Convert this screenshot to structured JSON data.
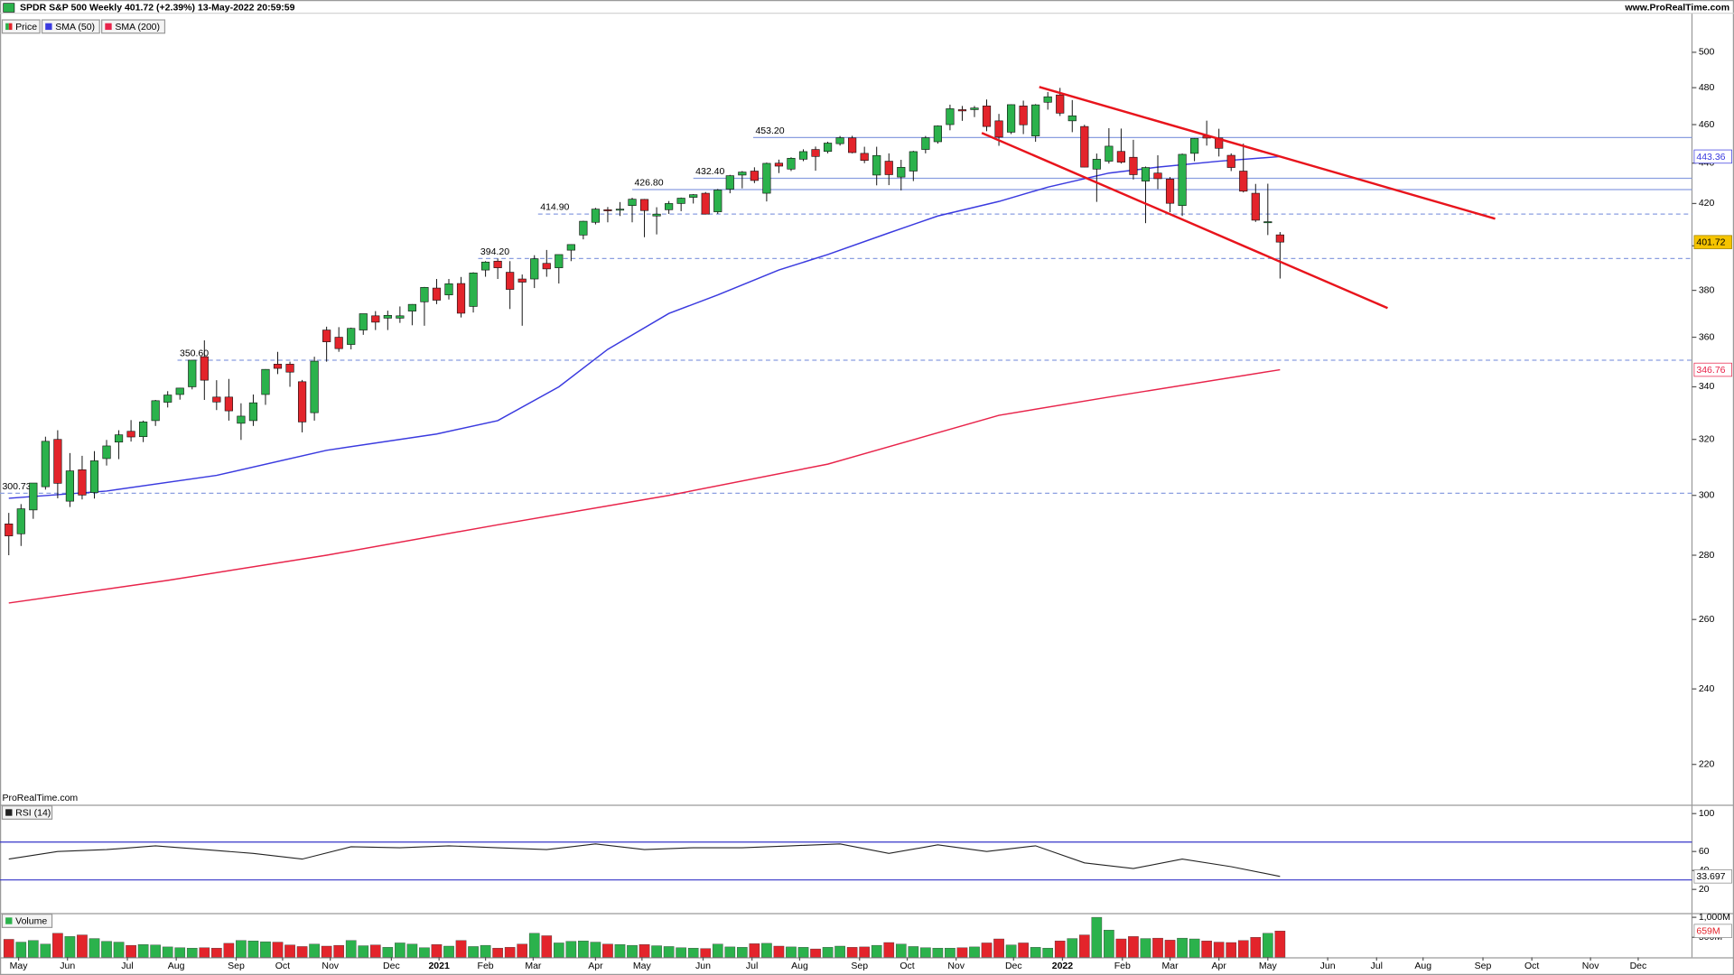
{
  "header": {
    "title": "SPDR S&P 500 Weekly 401.72 (+2.39%) 13-May-2022 20:59:59",
    "site": "www.ProRealTime.com"
  },
  "chart_data": [
    {
      "type": "candlestick",
      "name": "Price",
      "up_color": "#2bb24c",
      "down_color": "#e3242b",
      "log_scale": true,
      "watermark": "ProRealTime.com",
      "xlim": [
        -0.72,
        137.7
      ],
      "xticks": [
        {
          "value": 0.8,
          "label": "May"
        },
        {
          "value": 4.8,
          "label": "Jun"
        },
        {
          "value": 9.7,
          "label": "Jul"
        },
        {
          "value": 13.7,
          "label": "Aug"
        },
        {
          "value": 18.6,
          "label": "Sep"
        },
        {
          "value": 22.4,
          "label": "Oct"
        },
        {
          "value": 26.3,
          "label": "Nov"
        },
        {
          "value": 31.3,
          "label": "Dec"
        },
        {
          "value": 35.2,
          "label": "2021"
        },
        {
          "value": 39.0,
          "label": "Feb"
        },
        {
          "value": 42.9,
          "label": "Mar"
        },
        {
          "value": 48.0,
          "label": "Apr"
        },
        {
          "value": 51.8,
          "label": "May"
        },
        {
          "value": 56.8,
          "label": "Jun"
        },
        {
          "value": 60.8,
          "label": "Jul"
        },
        {
          "value": 64.7,
          "label": "Aug"
        },
        {
          "value": 69.6,
          "label": "Sep"
        },
        {
          "value": 73.5,
          "label": "Oct"
        },
        {
          "value": 77.5,
          "label": "Nov"
        },
        {
          "value": 82.2,
          "label": "Dec"
        },
        {
          "value": 86.2,
          "label": "2022"
        },
        {
          "value": 91.1,
          "label": "Feb"
        },
        {
          "value": 95.0,
          "label": "Mar"
        },
        {
          "value": 99.0,
          "label": "Apr"
        },
        {
          "value": 103.0,
          "label": "May"
        },
        {
          "value": 107.9,
          "label": "Jun"
        },
        {
          "value": 111.9,
          "label": "Jul"
        },
        {
          "value": 115.7,
          "label": "Aug"
        },
        {
          "value": 120.6,
          "label": "Sep"
        },
        {
          "value": 124.6,
          "label": "Oct"
        },
        {
          "value": 129.4,
          "label": "Nov"
        },
        {
          "value": 133.3,
          "label": "Dec"
        }
      ],
      "ylim": [
        210,
        523
      ],
      "yticks": [
        220,
        240,
        260,
        280,
        300,
        320,
        340,
        360,
        380,
        400,
        420,
        440,
        460,
        480,
        500
      ],
      "ohlc": [
        [
          290.3,
          294.0,
          280.0,
          286.3
        ],
        [
          287.0,
          297.0,
          283.0,
          295.4
        ],
        [
          295.0,
          304.0,
          292.0,
          304.3
        ],
        [
          303.0,
          321.0,
          302.0,
          319.3
        ],
        [
          320.0,
          323.4,
          299.0,
          304.2
        ],
        [
          298.0,
          315.0,
          296.0,
          308.6
        ],
        [
          309.0,
          314.0,
          298.6,
          300.1
        ],
        [
          301.0,
          315.7,
          298.9,
          312.2
        ],
        [
          313.0,
          319.8,
          310.5,
          317.6
        ],
        [
          319.0,
          323.4,
          312.8,
          321.7
        ],
        [
          323.0,
          327.2,
          319.2,
          320.9
        ],
        [
          321.0,
          327.0,
          319.0,
          326.5
        ],
        [
          327.0,
          334.9,
          325.0,
          334.6
        ],
        [
          334.0,
          338.3,
          332.0,
          336.8
        ],
        [
          337.0,
          339.6,
          335.0,
          339.5
        ],
        [
          340.0,
          350.7,
          339.0,
          350.6
        ],
        [
          352.0,
          358.7,
          334.9,
          342.6
        ],
        [
          336.0,
          342.6,
          331.0,
          334.1
        ],
        [
          336.0,
          343.1,
          327.0,
          330.7
        ],
        [
          326.0,
          333.6,
          319.8,
          328.7
        ],
        [
          327.0,
          337.0,
          325.0,
          333.8
        ],
        [
          337.0,
          347.0,
          333.0,
          346.9
        ],
        [
          349.0,
          354.0,
          345.0,
          347.3
        ],
        [
          349.0,
          350.0,
          340.0,
          345.8
        ],
        [
          342.0,
          342.7,
          322.6,
          326.5
        ],
        [
          330.0,
          352.0,
          327.0,
          350.2
        ],
        [
          363.0,
          364.4,
          350.0,
          358.1
        ],
        [
          360.0,
          364.2,
          354.0,
          355.3
        ],
        [
          357.0,
          364.0,
          355.0,
          363.7
        ],
        [
          363.0,
          369.9,
          361.0,
          369.9
        ],
        [
          369.0,
          371.0,
          363.0,
          366.3
        ],
        [
          368.0,
          371.2,
          363.0,
          369.2
        ],
        [
          368.0,
          373.0,
          366.0,
          369.0
        ],
        [
          371.0,
          374.0,
          365.0,
          373.9
        ],
        [
          375.0,
          381.5,
          364.8,
          381.3
        ],
        [
          381.0,
          385.0,
          374.0,
          375.7
        ],
        [
          378.0,
          385.0,
          376.0,
          382.9
        ],
        [
          383.0,
          385.9,
          368.3,
          370.1
        ],
        [
          373.0,
          388.0,
          370.4,
          387.7
        ],
        [
          389.0,
          393.0,
          386.0,
          392.6
        ],
        [
          393.0,
          394.2,
          385.0,
          390.0
        ],
        [
          388.0,
          393.0,
          371.9,
          380.4
        ],
        [
          385.0,
          387.0,
          364.8,
          383.6
        ],
        [
          385.0,
          395.7,
          381.0,
          394.1
        ],
        [
          392.0,
          398.1,
          386.0,
          389.5
        ],
        [
          390.0,
          396.0,
          383.0,
          396.0
        ],
        [
          398.0,
          400.7,
          393.0,
          400.6
        ],
        [
          405.0,
          411.7,
          403.0,
          411.5
        ],
        [
          411.0,
          417.9,
          410.0,
          417.3
        ],
        [
          417.0,
          418.3,
          411.0,
          416.7
        ],
        [
          417.0,
          420.7,
          414.0,
          417.3
        ],
        [
          419.0,
          422.8,
          411.0,
          422.1
        ],
        [
          422.0,
          422.2,
          404.0,
          416.6
        ],
        [
          414.0,
          418.2,
          405.3,
          414.9
        ],
        [
          417.0,
          421.2,
          415.0,
          420.0
        ],
        [
          420.0,
          422.9,
          416.3,
          422.6
        ],
        [
          423.0,
          424.6,
          420.0,
          424.3
        ],
        [
          425.0,
          425.6,
          414.7,
          414.9
        ],
        [
          416.0,
          427.1,
          415.0,
          426.6
        ],
        [
          427.0,
          434.1,
          425.0,
          433.7
        ],
        [
          434.0,
          436.0,
          427.4,
          435.5
        ],
        [
          436.0,
          437.9,
          430.0,
          431.3
        ],
        [
          425.0,
          440.3,
          421.0,
          439.9
        ],
        [
          440.0,
          441.8,
          435.0,
          438.5
        ],
        [
          437.0,
          443.0,
          436.0,
          442.5
        ],
        [
          442.0,
          447.1,
          441.0,
          445.9
        ],
        [
          447.0,
          448.5,
          436.2,
          443.4
        ],
        [
          446.0,
          451.0,
          445.0,
          450.3
        ],
        [
          450.0,
          454.0,
          449.0,
          453.1
        ],
        [
          453.0,
          454.1,
          445.0,
          445.4
        ],
        [
          445.0,
          448.4,
          440.0,
          441.4
        ],
        [
          434.0,
          448.4,
          428.9,
          443.9
        ],
        [
          441.0,
          445.0,
          429.0,
          434.2
        ],
        [
          433.0,
          441.7,
          426.4,
          437.9
        ],
        [
          436.0,
          446.3,
          431.0,
          445.9
        ],
        [
          447.0,
          454.0,
          445.0,
          453.1
        ],
        [
          451.0,
          459.6,
          450.0,
          459.3
        ],
        [
          460.0,
          470.7,
          457.0,
          468.5
        ],
        [
          468.0,
          470.0,
          462.0,
          467.3
        ],
        [
          468.0,
          470.0,
          464.0,
          468.9
        ],
        [
          470.0,
          473.5,
          456.5,
          459.0
        ],
        [
          462.0,
          465.7,
          448.9,
          453.4
        ],
        [
          456.0,
          470.9,
          455.0,
          470.7
        ],
        [
          470.0,
          472.9,
          455.0,
          459.9
        ],
        [
          454.0,
          471.0,
          451.0,
          470.6
        ],
        [
          472.0,
          477.6,
          468.0,
          475.0
        ],
        [
          476.0,
          479.9,
          464.6,
          466.1
        ],
        [
          462.0,
          473.2,
          456.0,
          464.7
        ],
        [
          459.0,
          459.9,
          437.9,
          438.0
        ],
        [
          437.0,
          444.9,
          420.8,
          442.0
        ],
        [
          441.0,
          458.1,
          439.8,
          448.7
        ],
        [
          446.0,
          457.9,
          439.8,
          440.5
        ],
        [
          443.0,
          452.0,
          431.8,
          434.2
        ],
        [
          431.0,
          438.3,
          410.6,
          437.8
        ],
        [
          435.0,
          444.0,
          427.0,
          432.2
        ],
        [
          432.0,
          433.0,
          415.8,
          420.1
        ],
        [
          419.0,
          444.9,
          414.0,
          444.5
        ],
        [
          445.0,
          452.9,
          441.0,
          452.7
        ],
        [
          454.0,
          462.1,
          449.0,
          452.9
        ],
        [
          453.0,
          457.8,
          443.4,
          447.6
        ],
        [
          444.0,
          445.0,
          436.0,
          437.8
        ],
        [
          436.0,
          450.0,
          425.4,
          426.0
        ],
        [
          425.0,
          429.6,
          411.2,
          412.0
        ],
        [
          411.0,
          429.7,
          405.0,
          411.3
        ],
        [
          405.1,
          406.4,
          385.2,
          401.72
        ]
      ],
      "series": [
        {
          "name": "SMA (50)",
          "color": "#3a3adf",
          "x": [
            0,
            8,
            17,
            26,
            35,
            40,
            45,
            49,
            54,
            58,
            63,
            67,
            72,
            76,
            81,
            85,
            90,
            94,
            99,
            104
          ],
          "values": [
            299,
            301.5,
            307,
            316,
            322,
            327,
            340,
            355,
            370,
            378,
            389,
            396,
            406,
            414,
            421,
            428,
            435,
            438,
            441,
            443.36
          ]
        },
        {
          "name": "SMA (200)",
          "color": "#e8234a",
          "x": [
            0,
            13,
            26,
            40,
            54,
            67,
            81,
            90,
            104
          ],
          "values": [
            265,
            272,
            280,
            290,
            300,
            311,
            329,
            336,
            346.76
          ]
        }
      ],
      "levels": [
        {
          "value": 300.73,
          "x": -0.72,
          "dashed": true
        },
        {
          "value": 350.6,
          "label": "350.60",
          "x": 13.8,
          "dashed": true
        },
        {
          "value": 394.2,
          "label": "394.20",
          "x": 38.4,
          "dashed": true
        },
        {
          "value": 414.9,
          "label": "414.90",
          "x": 43.3,
          "dashed": true
        },
        {
          "value": 426.8,
          "label": "426.80",
          "x": 51.0,
          "dashed": false
        },
        {
          "value": 432.4,
          "label": "432.40",
          "x": 56.0,
          "dashed": false
        },
        {
          "value": 453.2,
          "label": "453.20",
          "x": 60.9,
          "dashed": false
        }
      ],
      "level_color": "#8a9ee0",
      "trendlines": [
        {
          "color": "#e8141c",
          "x": [
            84.3,
            121.6
          ],
          "values": [
            480.4,
            412.7
          ]
        },
        {
          "color": "#e8141c",
          "x": [
            79.6,
            112.8
          ],
          "values": [
            455.6,
            372.3
          ]
        }
      ]
    },
    {
      "type": "line",
      "name": "RSI (14)",
      "color": "#222222",
      "x": [
        0,
        4,
        8,
        12,
        16,
        20,
        24,
        28,
        32,
        36,
        40,
        44,
        48,
        52,
        56,
        60,
        64,
        68,
        72,
        76,
        80,
        84,
        88,
        92,
        96,
        100,
        104
      ],
      "values": [
        52,
        60,
        62,
        66,
        62,
        58,
        52,
        65,
        64,
        66,
        64,
        62,
        68,
        62,
        64,
        64,
        66,
        68,
        58,
        67,
        60,
        66,
        48,
        42,
        52,
        44,
        33.697
      ],
      "ylim": [
        -5,
        107
      ],
      "yticks": [
        20,
        40,
        60,
        100
      ],
      "levels": [
        70,
        30
      ],
      "level_color": "#3535c8"
    },
    {
      "type": "bar",
      "name": "Volume",
      "ylim": [
        0,
        1050
      ],
      "yticks": [
        {
          "value": 500,
          "label": "500M"
        },
        {
          "value": 1000,
          "label": "1,000M"
        }
      ],
      "values": [
        450,
        380,
        420,
        330,
        600,
        520,
        560,
        470,
        400,
        380,
        300,
        320,
        310,
        260,
        240,
        230,
        240,
        230,
        350,
        420,
        410,
        390,
        380,
        310,
        270,
        330,
        280,
        300,
        420,
        290,
        310,
        250,
        360,
        330,
        240,
        320,
        280,
        420,
        270,
        300,
        230,
        250,
        330,
        600,
        540,
        360,
        400,
        410,
        380,
        330,
        320,
        300,
        320,
        290,
        270,
        240,
        230,
        220,
        330,
        260,
        250,
        340,
        350,
        280,
        260,
        250,
        210,
        250,
        280,
        250,
        260,
        300,
        370,
        330,
        270,
        240,
        230,
        230,
        240,
        260,
        360,
        460,
        310,
        360,
        250,
        230,
        410,
        470,
        560,
        1000,
        680,
        460,
        520,
        470,
        480,
        430,
        480,
        460,
        410,
        380,
        370,
        420,
        500,
        600,
        659
      ],
      "value_labels": [
        null,
        null,
        null,
        null,
        null,
        null,
        null,
        null,
        null,
        null,
        null,
        null,
        null,
        null,
        null,
        null,
        null,
        null,
        null,
        null,
        null,
        null,
        null,
        null,
        null,
        null,
        null,
        null,
        null,
        null,
        null,
        null,
        null,
        null,
        null,
        null,
        null,
        null,
        null,
        null,
        null,
        null,
        null,
        null,
        null,
        null,
        null,
        null,
        null,
        null,
        null,
        null,
        null,
        null,
        null,
        null,
        null,
        null,
        null,
        null,
        null,
        null,
        null,
        null,
        null,
        null,
        null,
        null,
        null,
        null,
        null,
        null,
        null,
        null,
        null,
        null,
        null,
        null,
        null,
        null,
        null,
        null,
        null,
        null,
        null,
        null,
        null,
        null,
        null,
        null,
        null,
        null,
        null,
        null,
        null,
        null,
        null,
        null,
        null,
        null,
        null,
        null,
        null,
        null,
        "659M"
      ]
    }
  ]
}
